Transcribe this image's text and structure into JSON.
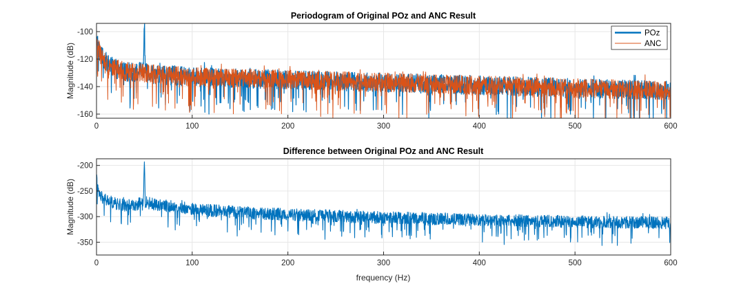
{
  "colors": {
    "poz": "#0072BD",
    "anc": "#D95319",
    "grid": "#e6e6e6",
    "axis": "#262626"
  },
  "chart_data": [
    {
      "type": "line",
      "title": "Periodogram of Original POz and ANC Result",
      "xlabel": "",
      "ylabel": "Magnitude (dB)",
      "xlim": [
        0,
        600
      ],
      "ylim": [
        -163,
        -94
      ],
      "xticks": [
        0,
        100,
        200,
        300,
        400,
        500,
        600
      ],
      "yticks": [
        -160,
        -140,
        -120,
        -100
      ],
      "grid": true,
      "legend": "top-right",
      "series": [
        {
          "name": "POz",
          "color": "#0072BD",
          "width": 2,
          "x": [
            0,
            2,
            5,
            8,
            12,
            20,
            30,
            40,
            49,
            50,
            51,
            60,
            80,
            100,
            150,
            200,
            250,
            300,
            350,
            400,
            450,
            500,
            550,
            600
          ],
          "y": [
            -100,
            -112,
            -118,
            -120,
            -124,
            -127,
            -129,
            -130,
            -128,
            -97,
            -128,
            -131,
            -132,
            -133,
            -134,
            -135,
            -136,
            -137,
            -138,
            -139,
            -140,
            -141,
            -142,
            -143
          ]
        },
        {
          "name": "ANC",
          "color": "#D95319",
          "width": 1,
          "x": [
            0,
            2,
            5,
            8,
            12,
            20,
            30,
            40,
            50,
            60,
            80,
            100,
            150,
            200,
            250,
            300,
            350,
            400,
            450,
            500,
            550,
            600
          ],
          "y": [
            -104,
            -112,
            -118,
            -120,
            -124,
            -127,
            -129,
            -130,
            -130,
            -131,
            -132,
            -133,
            -134,
            -135,
            -136,
            -137,
            -138,
            -139,
            -140,
            -141,
            -142,
            -143
          ]
        }
      ]
    },
    {
      "type": "line",
      "title": "Difference between Original POz and ANC Result",
      "xlabel": "frequency (Hz)",
      "ylabel": "Magnitude (dB)",
      "xlim": [
        0,
        600
      ],
      "ylim": [
        -375,
        -187
      ],
      "xticks": [
        0,
        100,
        200,
        300,
        400,
        500,
        600
      ],
      "yticks": [
        -350,
        -300,
        -250,
        -200
      ],
      "grid": true,
      "series": [
        {
          "color": "#0072BD",
          "width": 1.5,
          "x": [
            0,
            2,
            5,
            10,
            20,
            30,
            40,
            49,
            50,
            51,
            60,
            80,
            100,
            150,
            200,
            250,
            300,
            350,
            400,
            450,
            500,
            550,
            600
          ],
          "y": [
            -225,
            -255,
            -262,
            -268,
            -275,
            -278,
            -277,
            -272,
            -193,
            -272,
            -276,
            -280,
            -285,
            -292,
            -296,
            -299,
            -302,
            -304,
            -306,
            -308,
            -310,
            -311,
            -312
          ]
        }
      ]
    }
  ]
}
